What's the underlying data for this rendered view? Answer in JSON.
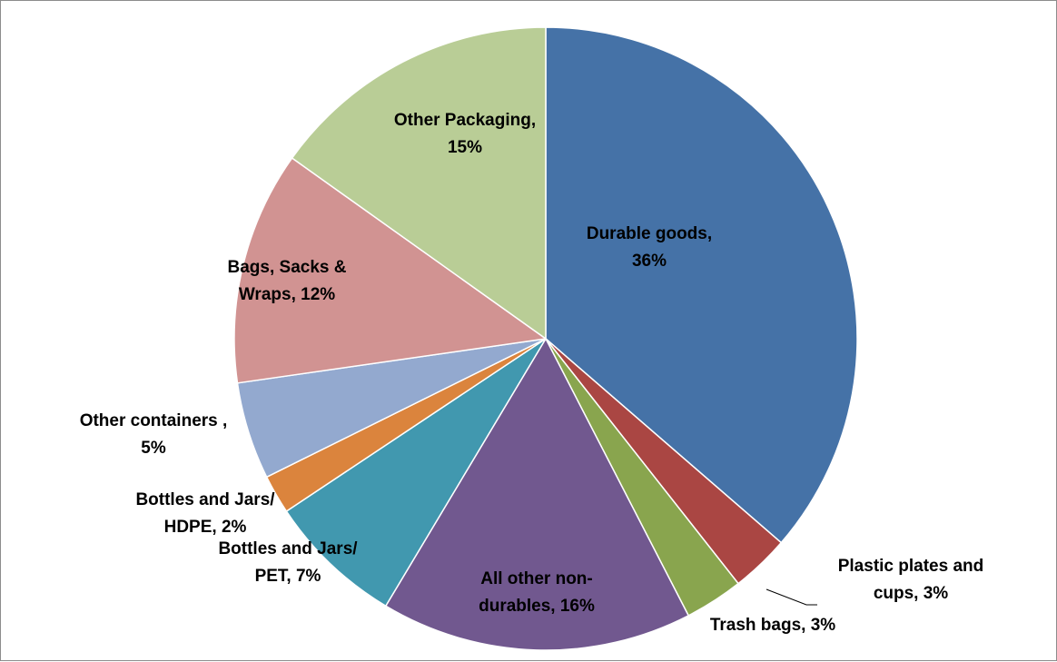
{
  "chart_data": {
    "type": "pie",
    "start_angle_deg": 0,
    "direction": "clockwise",
    "labels_style": "category-name, percent",
    "slices": [
      {
        "name": "Durable goods",
        "value": 36,
        "label_lines": [
          "Durable goods,",
          "36%"
        ],
        "color": "#4572A7"
      },
      {
        "name": "Plastic plates and cups",
        "value": 3,
        "label_lines": [
          "Plastic plates and",
          "cups, 3%"
        ],
        "color": "#AA4643"
      },
      {
        "name": "Trash bags",
        "value": 3,
        "label_lines": [
          "Trash bags, 3%"
        ],
        "color": "#89A54E"
      },
      {
        "name": "All other non-durables",
        "value": 16,
        "label_lines": [
          "All other non-",
          "durables, 16%"
        ],
        "color": "#71588F"
      },
      {
        "name": "Bottles and Jars/ PET",
        "value": 7,
        "label_lines": [
          "Bottles and Jars/",
          "PET, 7%"
        ],
        "color": "#4198AF"
      },
      {
        "name": "Bottles and Jars/ HDPE",
        "value": 2,
        "label_lines": [
          "Bottles and Jars/",
          "HDPE, 2%"
        ],
        "color": "#DB843D"
      },
      {
        "name": "Other containers",
        "value": 5,
        "label_lines": [
          "Other containers ,",
          "5%"
        ],
        "color": "#93A9CF"
      },
      {
        "name": "Bags, Sacks & Wraps",
        "value": 12,
        "label_lines": [
          "Bags, Sacks &",
          "Wraps, 12%"
        ],
        "color": "#D19392"
      },
      {
        "name": "Other Packaging",
        "value": 15,
        "label_lines": [
          "Other Packaging,",
          "15%"
        ],
        "color": "#B9CD96"
      }
    ]
  }
}
